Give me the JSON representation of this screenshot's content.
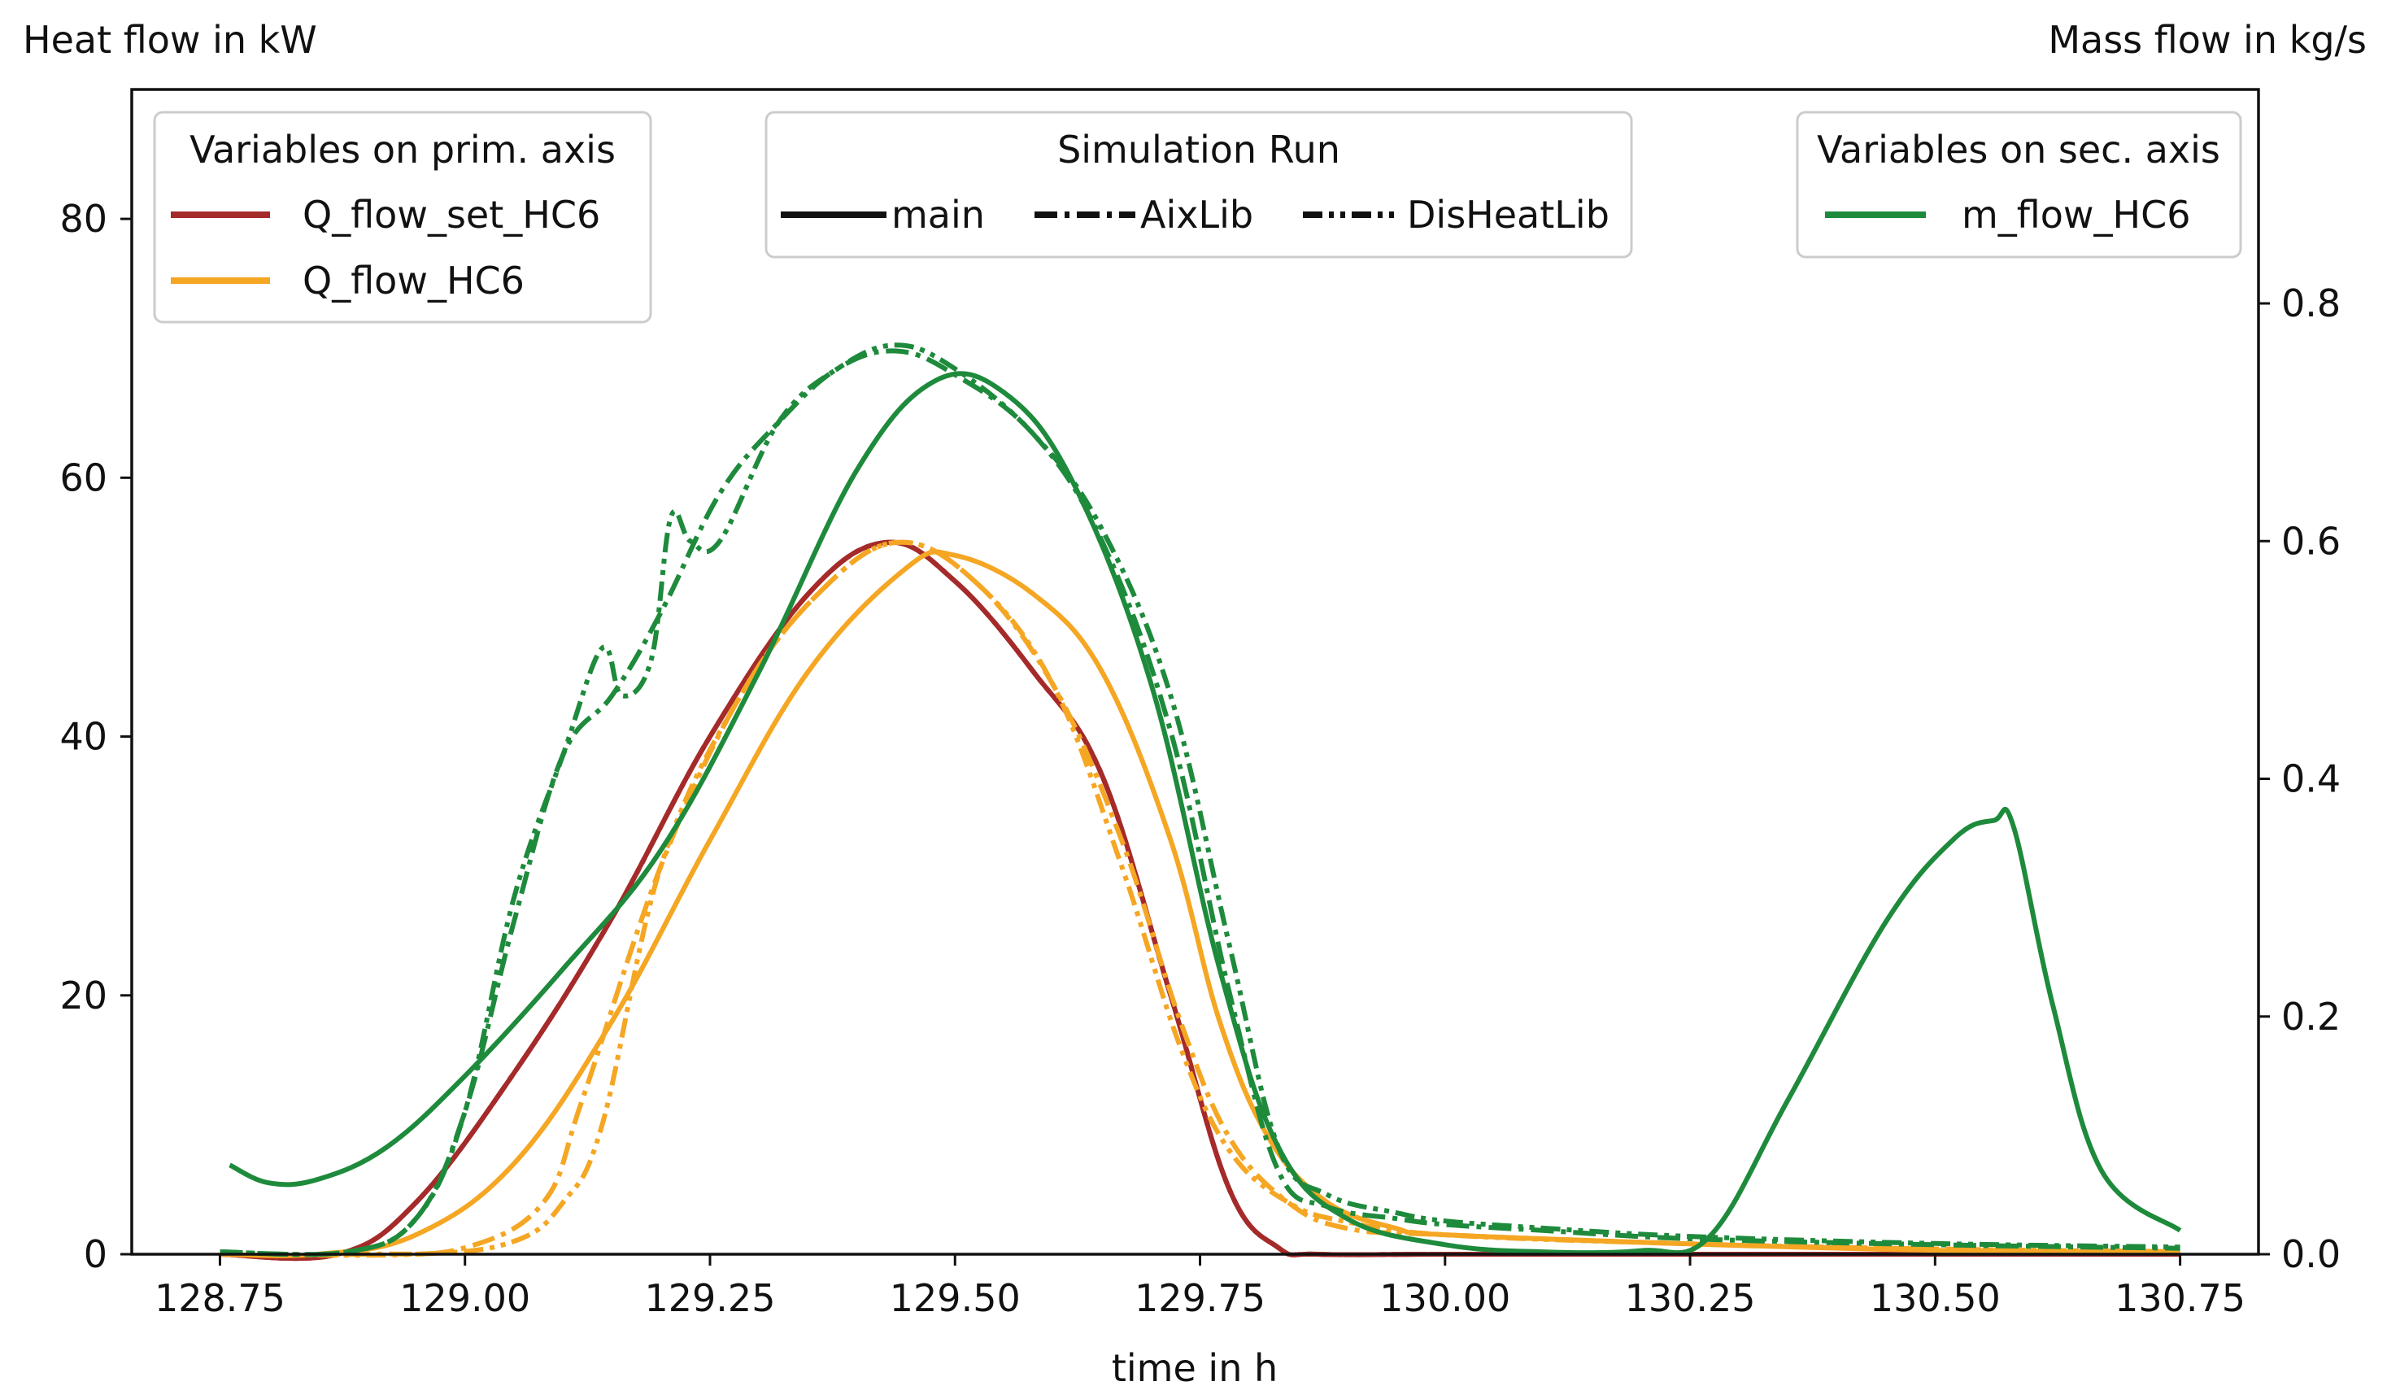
{
  "chart_data": {
    "type": "line",
    "xlabel": "time in h",
    "ylabel_left": "Heat flow in kW",
    "ylabel_right": "Mass flow in kg/s",
    "xlim": [
      128.66,
      130.83
    ],
    "ylim_left": [
      0,
      90
    ],
    "ylim_right": [
      0,
      0.98
    ],
    "x_ticks": [
      "128.75",
      "129.00",
      "129.25",
      "129.50",
      "129.75",
      "130.00",
      "130.25",
      "130.50",
      "130.75"
    ],
    "y_ticks_left": [
      "0",
      "20",
      "40",
      "60",
      "80"
    ],
    "y_ticks_right": [
      "0.0",
      "0.2",
      "0.4",
      "0.6",
      "0.8"
    ],
    "legend_primary": {
      "title": "Variables on prim. axis",
      "entries": [
        {
          "label": "Q_flow_set_HC6",
          "color": "#a52a2a"
        },
        {
          "label": "Q_flow_HC6",
          "color": "#f5a623"
        }
      ]
    },
    "legend_runs": {
      "title": "Simulation Run",
      "entries": [
        {
          "label": "main",
          "style": "solid"
        },
        {
          "label": "AixLib",
          "style": "dashdot"
        },
        {
          "label": "DisHeatLib",
          "style": "dashdotdot"
        }
      ]
    },
    "legend_secondary": {
      "title": "Variables on sec. axis",
      "entries": [
        {
          "label": "m_flow_HC6",
          "color": "#1e8a3c"
        }
      ]
    },
    "series": [
      {
        "name": "Q_flow_set_HC6 main",
        "axis": "left",
        "color": "#a52a2a",
        "style": "solid",
        "x": [
          128.75,
          128.87,
          128.95,
          129.05,
          129.15,
          129.25,
          129.35,
          129.43,
          129.5,
          129.58,
          129.65,
          129.72,
          129.78,
          129.83,
          129.87,
          130.0,
          130.25,
          130.5,
          130.75
        ],
        "y": [
          0,
          0,
          4,
          14,
          26,
          40,
          51,
          55,
          52,
          45,
          37,
          20,
          5,
          0.5,
          0,
          0,
          0,
          0,
          0
        ]
      },
      {
        "name": "Q_flow_set_HC6 AixLib",
        "axis": "left",
        "color": "#a52a2a",
        "style": "dashdot",
        "x": [
          128.75,
          128.87,
          128.95,
          129.05,
          129.15,
          129.25,
          129.35,
          129.43,
          129.5,
          129.58,
          129.65,
          129.72,
          129.78,
          129.83,
          129.87,
          130.0,
          130.25,
          130.5,
          130.75
        ],
        "y": [
          0,
          0,
          4,
          14,
          26,
          40,
          51,
          55,
          52,
          45,
          37,
          20,
          5,
          0.5,
          0,
          0,
          0,
          0,
          0
        ]
      },
      {
        "name": "Q_flow_set_HC6 DisHeatLib",
        "axis": "left",
        "color": "#a52a2a",
        "style": "dashdotdot",
        "x": [
          128.75,
          128.87,
          128.95,
          129.05,
          129.15,
          129.25,
          129.35,
          129.43,
          129.5,
          129.58,
          129.65,
          129.72,
          129.78,
          129.83,
          129.87,
          130.0,
          130.25,
          130.5,
          130.75
        ],
        "y": [
          0,
          0,
          4,
          14,
          26,
          40,
          51,
          55,
          52,
          45,
          37,
          20,
          5,
          0.5,
          0,
          0,
          0,
          0,
          0
        ]
      },
      {
        "name": "Q_flow_HC6 main",
        "axis": "left",
        "color": "#f5a623",
        "style": "solid",
        "x": [
          128.75,
          128.85,
          128.95,
          129.05,
          129.15,
          129.25,
          129.35,
          129.45,
          129.5,
          129.58,
          129.65,
          129.72,
          129.77,
          129.82,
          129.88,
          129.95,
          130.0,
          130.25,
          130.5,
          130.75
        ],
        "y": [
          0,
          0,
          1.5,
          7,
          18,
          32,
          45,
          53,
          54,
          51,
          45,
          32,
          18,
          9,
          4,
          2,
          1.5,
          0.8,
          0.3,
          0.2
        ]
      },
      {
        "name": "Q_flow_HC6 AixLib",
        "axis": "left",
        "color": "#f5a623",
        "style": "dashdot",
        "x": [
          128.75,
          128.9,
          129.0,
          129.08,
          129.12,
          129.2,
          129.28,
          129.36,
          129.44,
          129.52,
          129.6,
          129.67,
          129.73,
          129.78,
          129.84,
          129.9,
          130.0,
          130.25,
          130.5,
          130.75
        ],
        "y": [
          0,
          0,
          0.5,
          4,
          12,
          30,
          43,
          51,
          55,
          52,
          44,
          32,
          18,
          9,
          4,
          2,
          1.5,
          0.8,
          0.4,
          0.2
        ]
      },
      {
        "name": "Q_flow_HC6 DisHeatLib",
        "axis": "left",
        "color": "#f5a623",
        "style": "dashdotdot",
        "x": [
          128.75,
          128.95,
          129.05,
          129.1,
          129.14,
          129.2,
          129.28,
          129.36,
          129.44,
          129.52,
          129.6,
          129.67,
          129.73,
          129.78,
          129.84,
          129.9,
          130.0,
          130.25,
          130.5,
          130.75
        ],
        "y": [
          0,
          0,
          1,
          4,
          10,
          30,
          43,
          51,
          55,
          52,
          44,
          30,
          16,
          8,
          4,
          2.5,
          1.5,
          0.8,
          0.4,
          0.2
        ]
      },
      {
        "name": "m_flow_HC6 main",
        "axis": "right",
        "color": "#1e8a3c",
        "style": "solid",
        "x": [
          128.76,
          128.8,
          128.85,
          128.92,
          129.0,
          129.1,
          129.2,
          129.3,
          129.4,
          129.48,
          129.55,
          129.62,
          129.7,
          129.77,
          129.83,
          129.9,
          130.0,
          130.1,
          130.2,
          130.27,
          130.35,
          130.45,
          130.52,
          130.56,
          130.58,
          130.62,
          130.67,
          130.75
        ],
        "y": [
          0.075,
          0.06,
          0.063,
          0.09,
          0.15,
          0.24,
          0.34,
          0.49,
          0.66,
          0.735,
          0.725,
          0.65,
          0.48,
          0.24,
          0.09,
          0.03,
          0.008,
          0.002,
          0.003,
          0.015,
          0.13,
          0.28,
          0.35,
          0.365,
          0.36,
          0.21,
          0.07,
          0.02
        ]
      },
      {
        "name": "m_flow_HC6 AixLib",
        "axis": "right",
        "color": "#1e8a3c",
        "style": "dashdot",
        "x": [
          128.75,
          128.88,
          128.95,
          129.0,
          129.05,
          129.1,
          129.15,
          129.2,
          129.26,
          129.32,
          129.38,
          129.44,
          129.5,
          129.58,
          129.65,
          129.72,
          129.78,
          129.83,
          129.88,
          129.95,
          130.0,
          130.1,
          130.25,
          130.5,
          130.75
        ],
        "y": [
          0.002,
          0.002,
          0.03,
          0.12,
          0.28,
          0.42,
          0.47,
          0.54,
          0.64,
          0.7,
          0.745,
          0.76,
          0.74,
          0.69,
          0.6,
          0.44,
          0.22,
          0.07,
          0.04,
          0.03,
          0.025,
          0.02,
          0.013,
          0.008,
          0.005
        ]
      },
      {
        "name": "m_flow_HC6 DisHeatLib",
        "axis": "right",
        "color": "#1e8a3c",
        "style": "dashdotdot",
        "x": [
          128.75,
          128.88,
          128.95,
          129.0,
          129.05,
          129.1,
          129.14,
          129.16,
          129.19,
          129.21,
          129.23,
          129.26,
          129.32,
          129.38,
          129.44,
          129.5,
          129.58,
          129.65,
          129.72,
          129.78,
          129.83,
          129.88,
          129.95,
          130.0,
          130.1,
          130.25,
          130.5,
          130.75
        ],
        "y": [
          0.002,
          0.002,
          0.03,
          0.12,
          0.3,
          0.42,
          0.51,
          0.47,
          0.5,
          0.62,
          0.6,
          0.6,
          0.7,
          0.745,
          0.765,
          0.745,
          0.69,
          0.61,
          0.47,
          0.26,
          0.09,
          0.05,
          0.035,
          0.028,
          0.022,
          0.015,
          0.009,
          0.006
        ]
      }
    ]
  }
}
